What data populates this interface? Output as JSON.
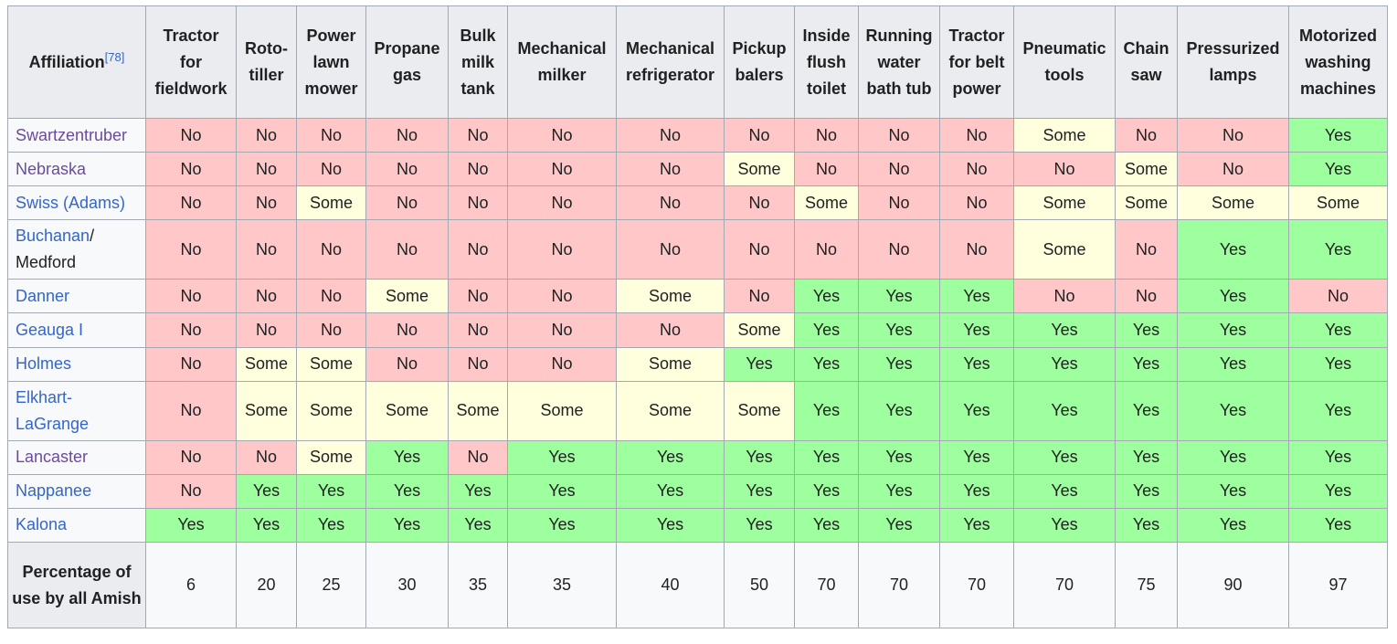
{
  "table": {
    "corner_label": "Affiliation",
    "corner_ref": "[78]",
    "columns": [
      "Tractor for fieldwork",
      "Roto- tiller",
      "Power lawn mower",
      "Propane gas",
      "Bulk milk tank",
      "Mechanical milker",
      "Mechanical refrigerator",
      "Pickup balers",
      "Inside flush toilet",
      "Running water bath tub",
      "Tractor for belt power",
      "Pneumatic tools",
      "Chain saw",
      "Pressurized lamps",
      "Motorized washing machines"
    ],
    "rows": [
      {
        "label": "Swartzentruber",
        "values": [
          "No",
          "No",
          "No",
          "No",
          "No",
          "No",
          "No",
          "No",
          "No",
          "No",
          "No",
          "Some",
          "No",
          "No",
          "Yes"
        ]
      },
      {
        "label": "Nebraska",
        "values": [
          "No",
          "No",
          "No",
          "No",
          "No",
          "No",
          "No",
          "Some",
          "No",
          "No",
          "No",
          "No",
          "Some",
          "No",
          "Yes"
        ]
      },
      {
        "label": "Swiss (Adams)",
        "values": [
          "No",
          "No",
          "Some",
          "No",
          "No",
          "No",
          "No",
          "No",
          "Some",
          "No",
          "No",
          "Some",
          "Some",
          "Some",
          "Some"
        ]
      },
      {
        "label": "Buchanan",
        "label_suffix": "/ Medford",
        "values": [
          "No",
          "No",
          "No",
          "No",
          "No",
          "No",
          "No",
          "No",
          "No",
          "No",
          "No",
          "Some",
          "No",
          "Yes",
          "Yes"
        ]
      },
      {
        "label": "Danner",
        "values": [
          "No",
          "No",
          "No",
          "Some",
          "No",
          "No",
          "Some",
          "No",
          "Yes",
          "Yes",
          "Yes",
          "No",
          "No",
          "Yes",
          "No"
        ]
      },
      {
        "label": "Geauga I",
        "values": [
          "No",
          "No",
          "No",
          "No",
          "No",
          "No",
          "No",
          "Some",
          "Yes",
          "Yes",
          "Yes",
          "Yes",
          "Yes",
          "Yes",
          "Yes"
        ]
      },
      {
        "label": "Holmes",
        "values": [
          "No",
          "Some",
          "Some",
          "No",
          "No",
          "No",
          "Some",
          "Yes",
          "Yes",
          "Yes",
          "Yes",
          "Yes",
          "Yes",
          "Yes",
          "Yes"
        ]
      },
      {
        "label": "Elkhart- LaGrange",
        "values": [
          "No",
          "Some",
          "Some",
          "Some",
          "Some",
          "Some",
          "Some",
          "Some",
          "Yes",
          "Yes",
          "Yes",
          "Yes",
          "Yes",
          "Yes",
          "Yes"
        ]
      },
      {
        "label": "Lancaster",
        "values": [
          "No",
          "No",
          "Some",
          "Yes",
          "No",
          "Yes",
          "Yes",
          "Yes",
          "Yes",
          "Yes",
          "Yes",
          "Yes",
          "Yes",
          "Yes",
          "Yes"
        ]
      },
      {
        "label": "Nappanee",
        "values": [
          "No",
          "Yes",
          "Yes",
          "Yes",
          "Yes",
          "Yes",
          "Yes",
          "Yes",
          "Yes",
          "Yes",
          "Yes",
          "Yes",
          "Yes",
          "Yes",
          "Yes"
        ]
      },
      {
        "label": "Kalona",
        "values": [
          "Yes",
          "Yes",
          "Yes",
          "Yes",
          "Yes",
          "Yes",
          "Yes",
          "Yes",
          "Yes",
          "Yes",
          "Yes",
          "Yes",
          "Yes",
          "Yes",
          "Yes"
        ]
      }
    ],
    "footer": {
      "label": "Percentage of use by all Amish",
      "values": [
        "6",
        "20",
        "25",
        "30",
        "35",
        "35",
        "40",
        "50",
        "70",
        "70",
        "70",
        "70",
        "75",
        "90",
        "97"
      ]
    }
  },
  "colors": {
    "no": "#ffc7c7",
    "some": "#ffffdd",
    "yes": "#9eff9e",
    "header": "#eaecf0",
    "link": "#3366cc",
    "visited_link": "#6b4ba1"
  }
}
